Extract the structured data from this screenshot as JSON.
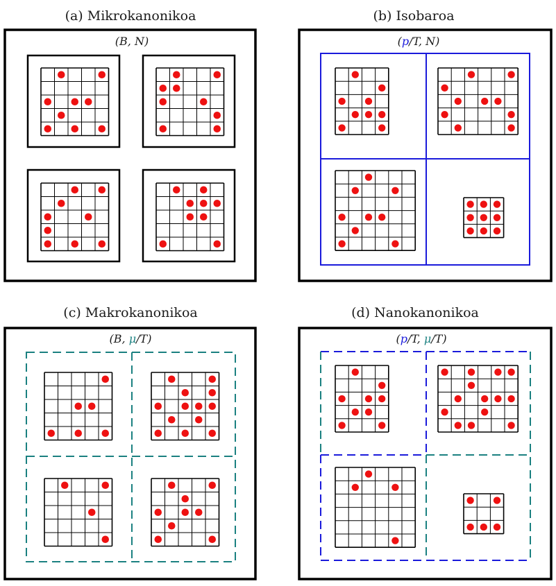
{
  "colors": {
    "dot": "#ee1111",
    "frame": "#000000",
    "blue": "#1a1adb",
    "teal": "#1a8080",
    "grid_line": "#000000"
  },
  "panels": {
    "a": {
      "title": "(a) Mikrokanonikoa",
      "label_parts": [
        {
          "text": "(B, ",
          "color": "black",
          "italic_first": true
        },
        {
          "text": "N)",
          "color": "black"
        }
      ],
      "label": "(B,  N)",
      "systems": [
        {
          "rows": 5,
          "cols": 5,
          "dots": [
            [
              0,
              1
            ],
            [
              0,
              4
            ],
            [
              2,
              0
            ],
            [
              2,
              2
            ],
            [
              2,
              3
            ],
            [
              3,
              1
            ],
            [
              4,
              0
            ],
            [
              4,
              2
            ],
            [
              4,
              4
            ]
          ]
        },
        {
          "rows": 5,
          "cols": 5,
          "dots": [
            [
              0,
              1
            ],
            [
              0,
              4
            ],
            [
              1,
              0
            ],
            [
              1,
              1
            ],
            [
              2,
              0
            ],
            [
              2,
              3
            ],
            [
              3,
              4
            ],
            [
              4,
              0
            ],
            [
              4,
              4
            ]
          ]
        },
        {
          "rows": 5,
          "cols": 5,
          "dots": [
            [
              0,
              2
            ],
            [
              0,
              4
            ],
            [
              1,
              1
            ],
            [
              2,
              0
            ],
            [
              2,
              3
            ],
            [
              3,
              0
            ],
            [
              4,
              0
            ],
            [
              4,
              2
            ],
            [
              4,
              4
            ]
          ]
        },
        {
          "rows": 5,
          "cols": 5,
          "dots": [
            [
              0,
              1
            ],
            [
              0,
              3
            ],
            [
              1,
              2
            ],
            [
              1,
              3
            ],
            [
              1,
              4
            ],
            [
              2,
              2
            ],
            [
              2,
              3
            ],
            [
              4,
              0
            ],
            [
              4,
              4
            ]
          ]
        }
      ]
    },
    "b": {
      "title": "(b) Isobaroa",
      "label": "(p/T,  N)",
      "systems": [
        {
          "rows": 5,
          "cols": 4,
          "dots": [
            [
              0,
              1
            ],
            [
              1,
              3
            ],
            [
              2,
              0
            ],
            [
              2,
              2
            ],
            [
              3,
              1
            ],
            [
              3,
              2
            ],
            [
              3,
              3
            ],
            [
              4,
              0
            ],
            [
              4,
              3
            ]
          ]
        },
        {
          "rows": 5,
          "cols": 6,
          "dots": [
            [
              0,
              2
            ],
            [
              0,
              5
            ],
            [
              1,
              0
            ],
            [
              2,
              1
            ],
            [
              2,
              3
            ],
            [
              2,
              4
            ],
            [
              3,
              0
            ],
            [
              3,
              5
            ],
            [
              4,
              1
            ],
            [
              4,
              5
            ]
          ]
        },
        {
          "rows": 6,
          "cols": 6,
          "dots": [
            [
              0,
              2
            ],
            [
              1,
              1
            ],
            [
              1,
              4
            ],
            [
              3,
              0
            ],
            [
              3,
              2
            ],
            [
              3,
              3
            ],
            [
              4,
              1
            ],
            [
              5,
              0
            ],
            [
              5,
              4
            ]
          ]
        },
        {
          "rows": 3,
          "cols": 3,
          "dots": [
            [
              0,
              0
            ],
            [
              0,
              1
            ],
            [
              0,
              2
            ],
            [
              1,
              0
            ],
            [
              1,
              1
            ],
            [
              1,
              2
            ],
            [
              2,
              0
            ],
            [
              2,
              1
            ],
            [
              2,
              2
            ]
          ]
        }
      ]
    },
    "c": {
      "title": "(c) Makrokanonikoa",
      "label": "(B,  μ/T)",
      "systems": [
        {
          "rows": 5,
          "cols": 5,
          "dots": [
            [
              0,
              4
            ],
            [
              2,
              2
            ],
            [
              2,
              3
            ],
            [
              4,
              0
            ],
            [
              4,
              2
            ],
            [
              4,
              4
            ]
          ]
        },
        {
          "rows": 5,
          "cols": 5,
          "dots": [
            [
              0,
              1
            ],
            [
              0,
              4
            ],
            [
              1,
              2
            ],
            [
              1,
              4
            ],
            [
              2,
              0
            ],
            [
              2,
              2
            ],
            [
              2,
              3
            ],
            [
              2,
              4
            ],
            [
              3,
              1
            ],
            [
              3,
              3
            ],
            [
              4,
              0
            ],
            [
              4,
              2
            ],
            [
              4,
              4
            ]
          ]
        },
        {
          "rows": 5,
          "cols": 5,
          "dots": [
            [
              0,
              1
            ],
            [
              0,
              4
            ],
            [
              2,
              3
            ],
            [
              4,
              4
            ]
          ]
        },
        {
          "rows": 5,
          "cols": 5,
          "dots": [
            [
              0,
              1
            ],
            [
              0,
              4
            ],
            [
              1,
              2
            ],
            [
              2,
              0
            ],
            [
              2,
              2
            ],
            [
              2,
              3
            ],
            [
              3,
              1
            ],
            [
              4,
              0
            ],
            [
              4,
              4
            ]
          ]
        }
      ]
    },
    "d": {
      "title": "(d) Nanokanonikoa",
      "label": "(p/T,  μ/T)",
      "systems": [
        {
          "rows": 5,
          "cols": 4,
          "dots": [
            [
              0,
              1
            ],
            [
              1,
              3
            ],
            [
              2,
              0
            ],
            [
              2,
              2
            ],
            [
              2,
              3
            ],
            [
              3,
              1
            ],
            [
              3,
              2
            ],
            [
              4,
              0
            ],
            [
              4,
              3
            ]
          ]
        },
        {
          "rows": 5,
          "cols": 6,
          "dots": [
            [
              0,
              0
            ],
            [
              0,
              2
            ],
            [
              0,
              4
            ],
            [
              0,
              5
            ],
            [
              1,
              2
            ],
            [
              2,
              1
            ],
            [
              2,
              3
            ],
            [
              2,
              4
            ],
            [
              2,
              5
            ],
            [
              3,
              0
            ],
            [
              3,
              3
            ],
            [
              4,
              1
            ],
            [
              4,
              2
            ],
            [
              4,
              5
            ]
          ]
        },
        {
          "rows": 6,
          "cols": 6,
          "dots": [
            [
              0,
              2
            ],
            [
              1,
              1
            ],
            [
              1,
              4
            ],
            [
              5,
              4
            ]
          ]
        },
        {
          "rows": 3,
          "cols": 3,
          "dots": [
            [
              0,
              0
            ],
            [
              0,
              2
            ],
            [
              2,
              0
            ],
            [
              2,
              1
            ],
            [
              2,
              2
            ]
          ]
        }
      ]
    }
  }
}
